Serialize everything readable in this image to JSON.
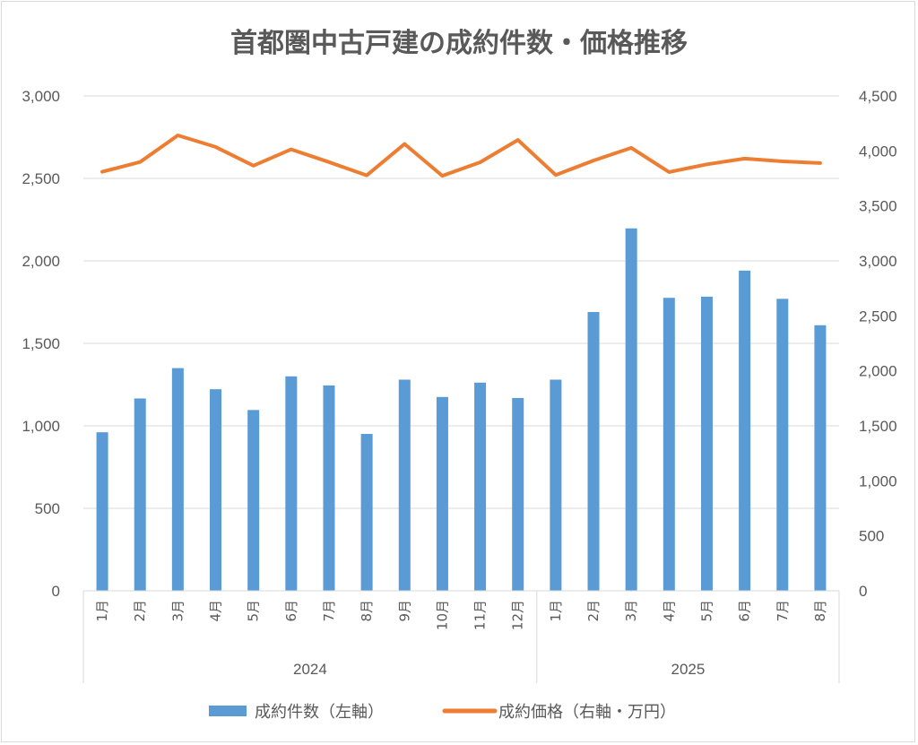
{
  "chart_data": {
    "type": "bar",
    "title": "首都圏中古戸建の成約件数・価格推移",
    "categories": [
      "1月",
      "2月",
      "3月",
      "4月",
      "5月",
      "6月",
      "7月",
      "8月",
      "9月",
      "10月",
      "11月",
      "12月",
      "1月",
      "2月",
      "3月",
      "4月",
      "5月",
      "6月",
      "7月",
      "8月"
    ],
    "groups": [
      {
        "label": "2024",
        "count": 12
      },
      {
        "label": "2025",
        "count": 8
      }
    ],
    "series": [
      {
        "name": "成約件数（左軸）",
        "type": "bar",
        "axis": "left",
        "color": "#5b9bd5",
        "values": [
          961,
          1166,
          1350,
          1222,
          1096,
          1300,
          1245,
          951,
          1280,
          1175,
          1262,
          1169,
          1280,
          1690,
          2197,
          1776,
          1783,
          1941,
          1770,
          1610
        ]
      },
      {
        "name": "成約価格（右軸・万円）",
        "type": "line",
        "axis": "right",
        "color": "#ed7d31",
        "values": [
          3810,
          3899,
          4141,
          4036,
          3866,
          4014,
          3898,
          3778,
          4063,
          3774,
          3897,
          4100,
          3781,
          3912,
          4028,
          3808,
          3878,
          3930,
          3905,
          3889
        ]
      }
    ],
    "y_left": {
      "min": 0,
      "max": 3000,
      "ticks": [
        "0",
        "500",
        "1,000",
        "1,500",
        "2,000",
        "2,500",
        "3,000"
      ]
    },
    "y_right": {
      "min": 0,
      "max": 4500,
      "ticks": [
        "0",
        "500",
        "1,000",
        "1,500",
        "2,000",
        "2,500",
        "3,000",
        "3,500",
        "4,000",
        "4,500"
      ]
    },
    "grid": true,
    "legend_position": "bottom"
  }
}
